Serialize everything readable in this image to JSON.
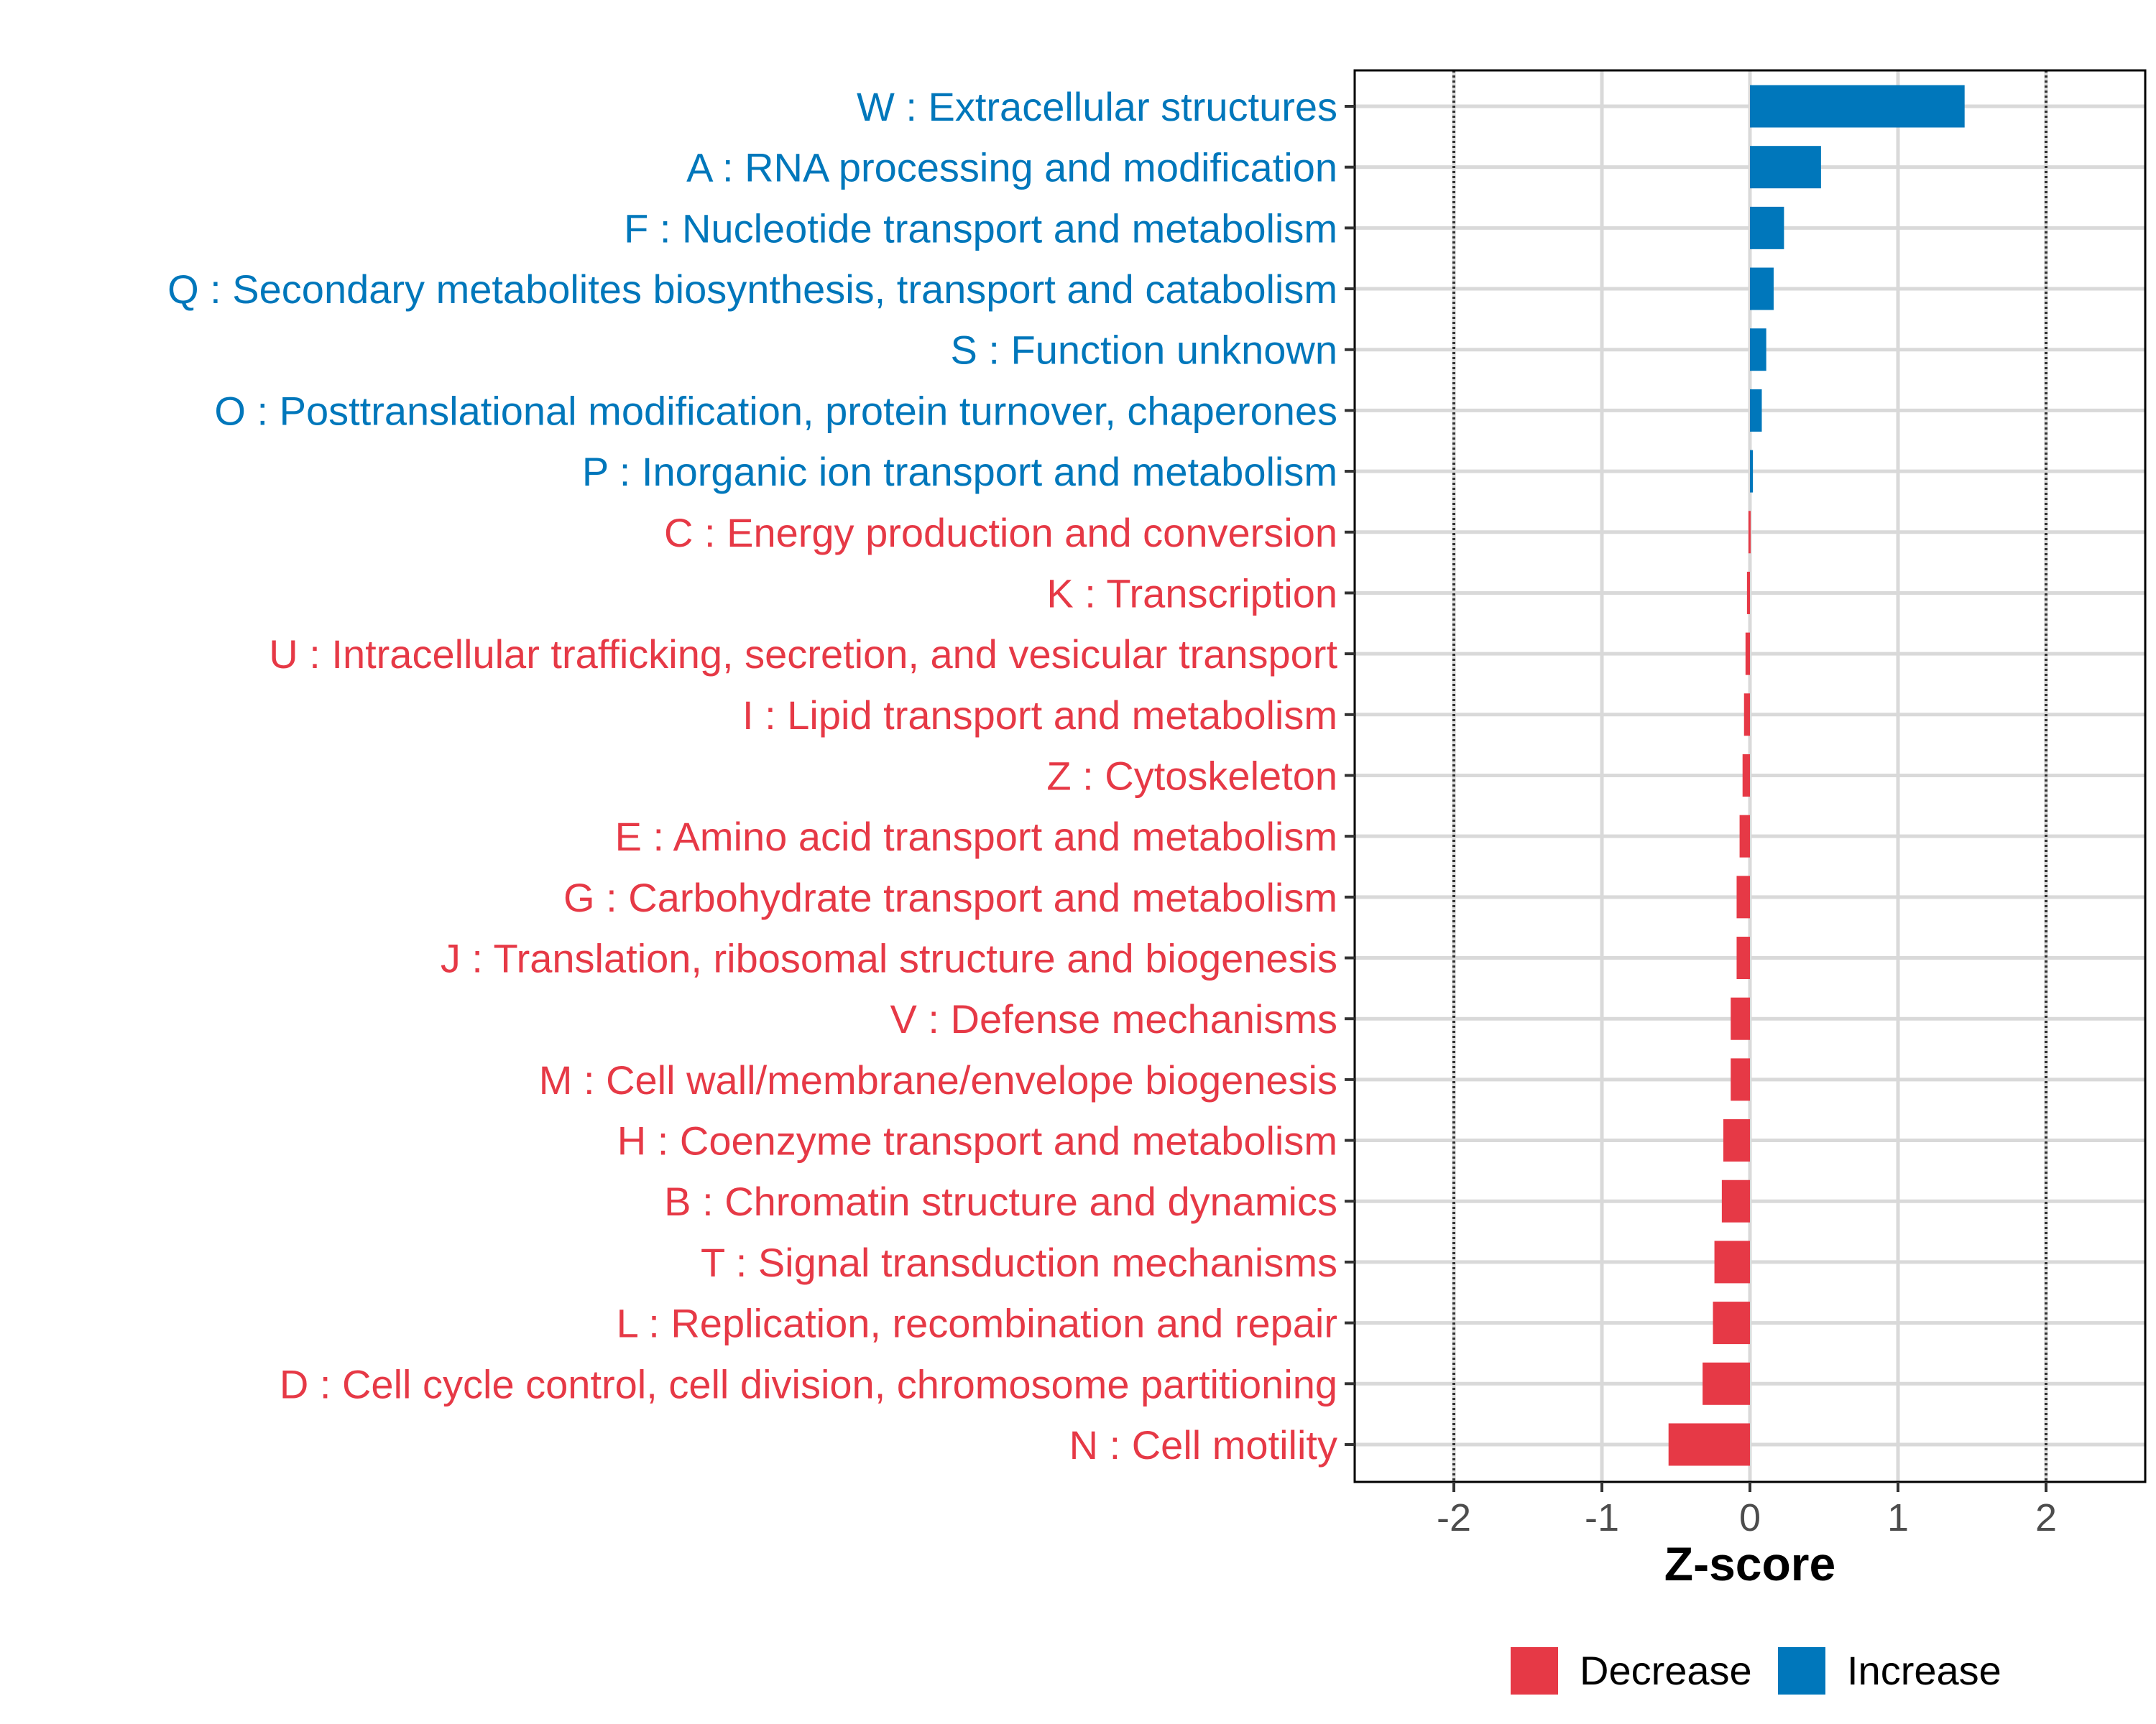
{
  "chart_data": {
    "type": "bar",
    "orientation": "horizontal",
    "xlabel": "Z-score",
    "xlim": [
      -2.67,
      2.67
    ],
    "xticks": [
      -2,
      -1,
      0,
      1,
      2
    ],
    "xtick_labels": [
      "-2",
      "-1",
      "0",
      "1",
      "2"
    ],
    "reference_lines": [
      -2,
      2
    ],
    "grid": true,
    "legend_position": "bottom",
    "legend": [
      {
        "name": "Decrease",
        "color": "#E63946"
      },
      {
        "name": "Increase",
        "color": "#0077BB"
      }
    ],
    "categories": [
      "W : Extracellular structures",
      "A : RNA processing and modification",
      "F : Nucleotide transport and metabolism",
      "Q : Secondary metabolites biosynthesis, transport and catabolism",
      "S : Function unknown",
      "O : Posttranslational modification, protein turnover, chaperones",
      "P : Inorganic ion transport and metabolism",
      "C : Energy production and conversion",
      "K : Transcription",
      "U : Intracellular trafficking, secretion, and vesicular transport",
      "I : Lipid transport and metabolism",
      "Z : Cytoskeleton",
      "E : Amino acid transport and metabolism",
      "G : Carbohydrate transport and metabolism",
      "J : Translation, ribosomal structure and biogenesis",
      "V : Defense mechanisms",
      "M : Cell wall/membrane/envelope biogenesis",
      "H : Coenzyme transport and metabolism",
      "B : Chromatin structure and dynamics",
      "T : Signal transduction mechanisms",
      "L : Replication, recombination and repair",
      "D : Cell cycle control, cell division, chromosome partitioning",
      "N : Cell motility"
    ],
    "values": [
      1.45,
      0.48,
      0.23,
      0.16,
      0.11,
      0.08,
      0.02,
      -0.01,
      -0.02,
      -0.03,
      -0.04,
      -0.05,
      -0.07,
      -0.09,
      -0.09,
      -0.13,
      -0.13,
      -0.18,
      -0.19,
      -0.24,
      -0.25,
      -0.32,
      -0.55
    ],
    "groups": [
      "Increase",
      "Increase",
      "Increase",
      "Increase",
      "Increase",
      "Increase",
      "Increase",
      "Decrease",
      "Decrease",
      "Decrease",
      "Decrease",
      "Decrease",
      "Decrease",
      "Decrease",
      "Decrease",
      "Decrease",
      "Decrease",
      "Decrease",
      "Decrease",
      "Decrease",
      "Decrease",
      "Decrease",
      "Decrease"
    ]
  }
}
